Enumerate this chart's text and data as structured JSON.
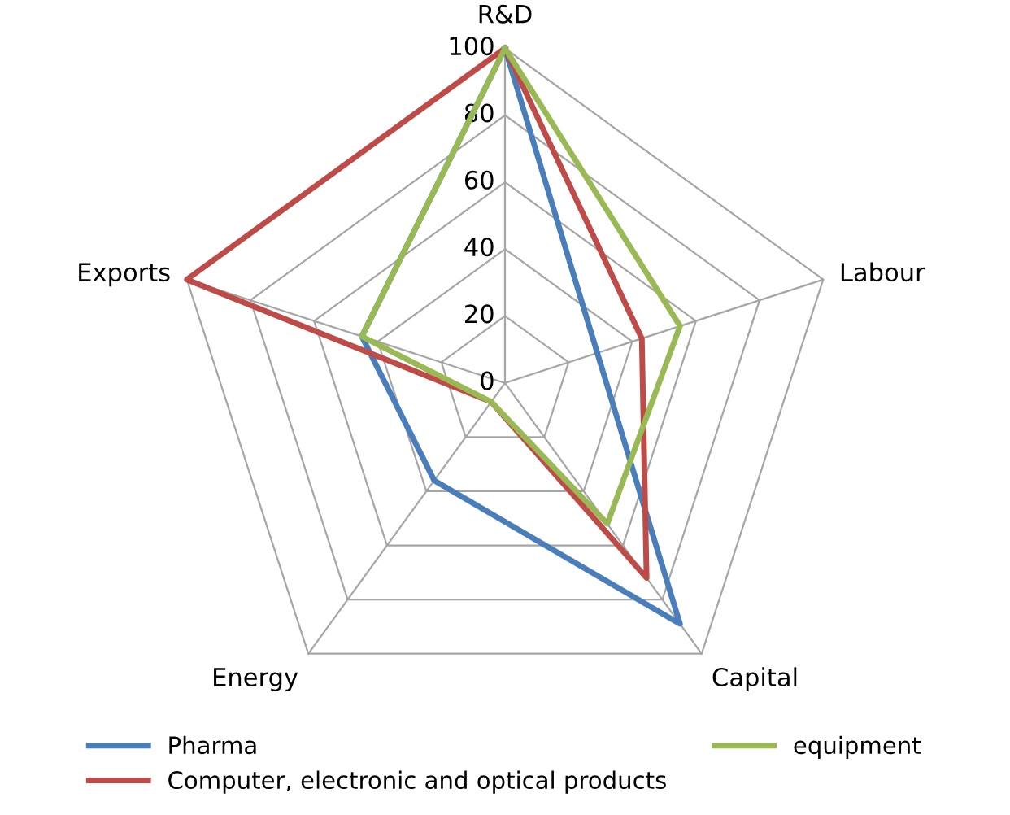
{
  "chart_data": {
    "type": "radar",
    "categories": [
      "R&D",
      "Labour",
      "Capital",
      "Energy",
      "Exports"
    ],
    "series": [
      {
        "name": "Pharma",
        "color": "#4a7ebb",
        "values": [
          100,
          29,
          89,
          36,
          45
        ]
      },
      {
        "name": "Computer, electronic and optical products",
        "color": "#be4b48",
        "values": [
          100,
          43,
          72,
          7,
          100
        ]
      },
      {
        "name": "equipment",
        "color": "#98b954",
        "values": [
          100,
          55,
          52,
          7,
          45
        ]
      }
    ],
    "ylim": [
      0,
      100
    ],
    "yticks": [
      0,
      20,
      40,
      60,
      80,
      100
    ],
    "grid": true,
    "legend": "bottom"
  }
}
